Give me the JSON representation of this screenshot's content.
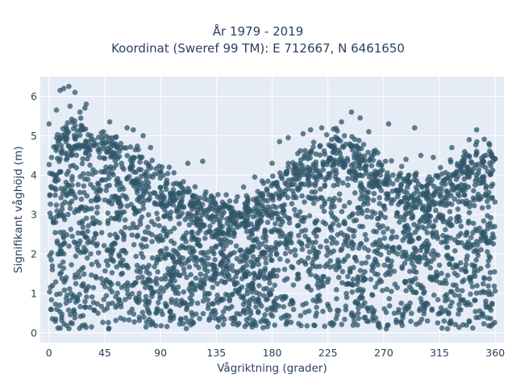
{
  "chart_data": {
    "type": "scatter",
    "title": [
      "År 1979 - 2019",
      "Koordinat (Sweref 99 TM): E 712667, N 6461650"
    ],
    "xlabel": "Vågriktning (grader)",
    "ylabel": "Signifikant våghöjd (m)",
    "xlim": [
      -7,
      367
    ],
    "ylim": [
      -0.25,
      6.5
    ],
    "xticks": [
      "0",
      "45",
      "90",
      "135",
      "180",
      "225",
      "270",
      "315",
      "360"
    ],
    "yticks": [
      "0",
      "1",
      "2",
      "3",
      "4",
      "5",
      "6"
    ],
    "grid": true,
    "background": "#e5ecf6",
    "marker_color": "#2f5569",
    "marker_opacity": 0.75,
    "upper_envelope": {
      "x": [
        0,
        10,
        20,
        30,
        40,
        50,
        60,
        70,
        80,
        90,
        100,
        110,
        120,
        130,
        140,
        150,
        160,
        170,
        180,
        190,
        200,
        210,
        220,
        230,
        240,
        250,
        260,
        270,
        280,
        290,
        300,
        310,
        320,
        330,
        340,
        350,
        360
      ],
      "y": [
        4.5,
        5.0,
        5.4,
        5.2,
        5.0,
        4.9,
        4.7,
        4.6,
        4.3,
        4.1,
        3.9,
        3.7,
        3.5,
        3.4,
        3.3,
        3.2,
        3.3,
        3.5,
        3.8,
        4.1,
        4.4,
        4.6,
        4.8,
        5.0,
        4.9,
        4.7,
        4.5,
        4.3,
        4.1,
        4.0,
        3.9,
        4.0,
        4.2,
        4.4,
        4.6,
        4.7,
        4.8
      ]
    },
    "outliers": [
      {
        "x": 12,
        "y": 6.2
      },
      {
        "x": 16,
        "y": 6.25
      },
      {
        "x": 9,
        "y": 6.15
      },
      {
        "x": 21,
        "y": 6.1
      },
      {
        "x": 30,
        "y": 5.8
      },
      {
        "x": 29,
        "y": 5.7
      },
      {
        "x": 17,
        "y": 5.75
      },
      {
        "x": 25,
        "y": 5.6
      },
      {
        "x": 6,
        "y": 5.65
      },
      {
        "x": 0,
        "y": 5.3
      },
      {
        "x": 49,
        "y": 5.35
      },
      {
        "x": 63,
        "y": 5.2
      },
      {
        "x": 68,
        "y": 5.15
      },
      {
        "x": 76,
        "y": 5.0
      },
      {
        "x": 44,
        "y": 5.1
      },
      {
        "x": 34,
        "y": 5.0
      },
      {
        "x": 244,
        "y": 5.6
      },
      {
        "x": 251,
        "y": 5.45
      },
      {
        "x": 236,
        "y": 5.35
      },
      {
        "x": 220,
        "y": 5.2
      },
      {
        "x": 211,
        "y": 5.15
      },
      {
        "x": 205,
        "y": 5.05
      },
      {
        "x": 274,
        "y": 5.3
      },
      {
        "x": 295,
        "y": 5.2
      },
      {
        "x": 258,
        "y": 5.1
      },
      {
        "x": 345,
        "y": 5.15
      },
      {
        "x": 355,
        "y": 4.8
      },
      {
        "x": 339,
        "y": 4.9
      },
      {
        "x": 325,
        "y": 4.7
      },
      {
        "x": 186,
        "y": 4.85
      },
      {
        "x": 193,
        "y": 4.95
      },
      {
        "x": 124,
        "y": 4.35
      },
      {
        "x": 112,
        "y": 4.3
      },
      {
        "x": 97,
        "y": 4.2
      },
      {
        "x": 166,
        "y": 3.95
      },
      {
        "x": 157,
        "y": 3.7
      },
      {
        "x": 143,
        "y": 3.5
      },
      {
        "x": 152,
        "y": 3.45
      },
      {
        "x": 134,
        "y": 3.3
      },
      {
        "x": 300,
        "y": 4.5
      },
      {
        "x": 310,
        "y": 4.45
      },
      {
        "x": 288,
        "y": 4.4
      },
      {
        "x": 230,
        "y": 4.75
      },
      {
        "x": 262,
        "y": 4.6
      },
      {
        "x": 180,
        "y": 4.3
      },
      {
        "x": 172,
        "y": 3.85
      },
      {
        "x": 82,
        "y": 4.7
      },
      {
        "x": 58,
        "y": 4.8
      }
    ]
  }
}
